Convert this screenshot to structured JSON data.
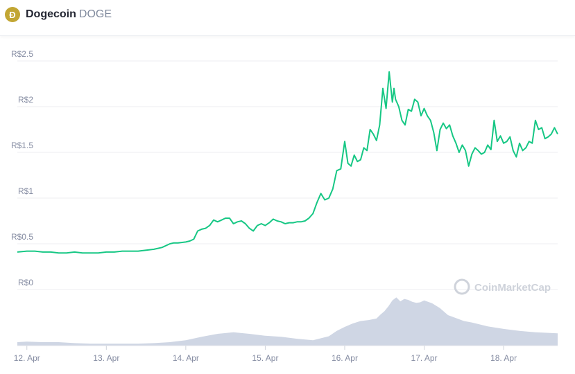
{
  "header": {
    "icon": "dogecoin-logo-icon",
    "icon_glyph": "Ð",
    "name": "Dogecoin",
    "symbol": "DOGE"
  },
  "watermark": "CoinMarketCap",
  "colors": {
    "price_line": "#16c784",
    "volume_area": "#cfd6e4",
    "grid": "#eceef2",
    "brand": "#c2a633"
  },
  "chart_data": {
    "type": "line",
    "title": "",
    "xlabel": "",
    "ylabel": "",
    "x_ticks": [
      "12. Apr",
      "13. Apr",
      "14. Apr",
      "15. Apr",
      "16. Apr",
      "17. Apr",
      "18. Apr"
    ],
    "y_ticks": [
      "R$0",
      "R$0.5",
      "R$1",
      "R$1.5",
      "R$2",
      "R$2.5"
    ],
    "y_tick_values": [
      0,
      0.5,
      1,
      1.5,
      2,
      2.5
    ],
    "ylim": [
      0,
      2.5
    ],
    "xlim": [
      11.88,
      18.68
    ],
    "grid": true,
    "series": [
      {
        "type": "line",
        "x": [
          11.88,
          12.0,
          12.1,
          12.2,
          12.3,
          12.4,
          12.5,
          12.6,
          12.7,
          12.8,
          12.9,
          13.0,
          13.1,
          13.2,
          13.3,
          13.4,
          13.5,
          13.6,
          13.7,
          13.8,
          13.85,
          13.9,
          14.0,
          14.05,
          14.1,
          14.15,
          14.2,
          14.25,
          14.3,
          14.35,
          14.4,
          14.45,
          14.5,
          14.55,
          14.6,
          14.65,
          14.7,
          14.75,
          14.8,
          14.85,
          14.9,
          14.95,
          15.0,
          15.05,
          15.1,
          15.15,
          15.2,
          15.25,
          15.3,
          15.35,
          15.4,
          15.45,
          15.5,
          15.55,
          15.6,
          15.65,
          15.7,
          15.75,
          15.8,
          15.85,
          15.9,
          15.95,
          16.0,
          16.04,
          16.08,
          16.12,
          16.16,
          16.2,
          16.24,
          16.28,
          16.32,
          16.36,
          16.4,
          16.44,
          16.48,
          16.52,
          16.56,
          16.6,
          16.62,
          16.64,
          16.68,
          16.72,
          16.76,
          16.8,
          16.84,
          16.88,
          16.92,
          16.96,
          17.0,
          17.04,
          17.08,
          17.12,
          17.16,
          17.2,
          17.24,
          17.28,
          17.32,
          17.36,
          17.4,
          17.44,
          17.48,
          17.52,
          17.56,
          17.6,
          17.64,
          17.68,
          17.72,
          17.76,
          17.8,
          17.84,
          17.88,
          17.92,
          17.96,
          18.0,
          18.04,
          18.08,
          18.12,
          18.16,
          18.2,
          18.24,
          18.28,
          18.32,
          18.36,
          18.4,
          18.44,
          18.48,
          18.52,
          18.56,
          18.6,
          18.64,
          18.68
        ],
        "values": [
          0.41,
          0.42,
          0.42,
          0.41,
          0.41,
          0.4,
          0.4,
          0.41,
          0.4,
          0.4,
          0.4,
          0.41,
          0.41,
          0.42,
          0.42,
          0.42,
          0.43,
          0.44,
          0.46,
          0.5,
          0.51,
          0.51,
          0.52,
          0.53,
          0.55,
          0.64,
          0.66,
          0.67,
          0.7,
          0.76,
          0.74,
          0.76,
          0.78,
          0.78,
          0.72,
          0.74,
          0.75,
          0.72,
          0.67,
          0.64,
          0.7,
          0.72,
          0.7,
          0.73,
          0.77,
          0.75,
          0.74,
          0.72,
          0.73,
          0.73,
          0.74,
          0.74,
          0.75,
          0.78,
          0.83,
          0.95,
          1.05,
          0.98,
          1.0,
          1.1,
          1.3,
          1.32,
          1.62,
          1.38,
          1.35,
          1.47,
          1.4,
          1.42,
          1.55,
          1.52,
          1.75,
          1.7,
          1.63,
          1.8,
          2.2,
          1.98,
          2.38,
          2.05,
          2.2,
          2.08,
          2.0,
          1.85,
          1.8,
          1.97,
          1.95,
          2.08,
          2.05,
          1.9,
          1.98,
          1.9,
          1.85,
          1.72,
          1.52,
          1.75,
          1.82,
          1.76,
          1.8,
          1.68,
          1.6,
          1.5,
          1.58,
          1.52,
          1.35,
          1.48,
          1.55,
          1.52,
          1.48,
          1.5,
          1.58,
          1.53,
          1.85,
          1.62,
          1.68,
          1.6,
          1.62,
          1.67,
          1.52,
          1.45,
          1.6,
          1.52,
          1.55,
          1.62,
          1.6,
          1.85,
          1.75,
          1.77,
          1.65,
          1.67,
          1.7,
          1.77,
          1.7
        ]
      },
      {
        "type": "area",
        "x": [
          11.88,
          12.0,
          12.2,
          12.4,
          12.6,
          12.8,
          13.0,
          13.2,
          13.4,
          13.6,
          13.8,
          14.0,
          14.2,
          14.4,
          14.6,
          14.8,
          15.0,
          15.2,
          15.4,
          15.6,
          15.8,
          15.9,
          16.0,
          16.1,
          16.2,
          16.3,
          16.4,
          16.45,
          16.5,
          16.55,
          16.6,
          16.65,
          16.7,
          16.75,
          16.8,
          16.85,
          16.9,
          16.95,
          17.0,
          17.1,
          17.2,
          17.3,
          17.4,
          17.5,
          17.6,
          17.8,
          18.0,
          18.2,
          18.4,
          18.68
        ],
        "values": [
          0.07,
          0.08,
          0.07,
          0.07,
          0.05,
          0.04,
          0.04,
          0.04,
          0.04,
          0.05,
          0.07,
          0.11,
          0.18,
          0.24,
          0.27,
          0.24,
          0.2,
          0.18,
          0.14,
          0.11,
          0.19,
          0.3,
          0.38,
          0.45,
          0.5,
          0.52,
          0.55,
          0.63,
          0.7,
          0.8,
          0.92,
          0.98,
          0.9,
          0.95,
          0.93,
          0.89,
          0.87,
          0.88,
          0.92,
          0.86,
          0.76,
          0.62,
          0.56,
          0.5,
          0.47,
          0.39,
          0.34,
          0.3,
          0.27,
          0.25
        ]
      }
    ],
    "volume_ylim": [
      0,
      1.0
    ]
  }
}
